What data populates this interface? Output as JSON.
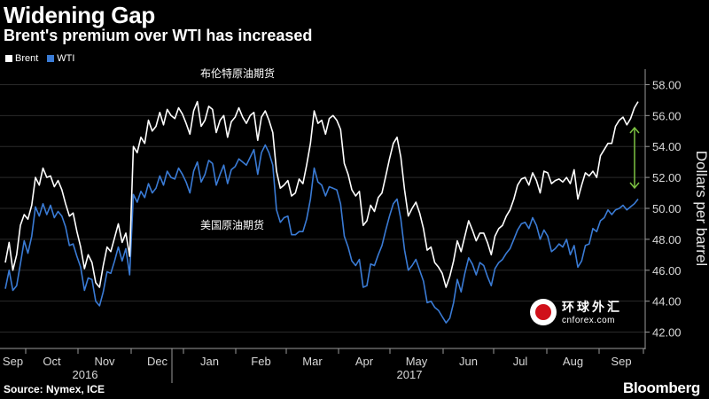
{
  "title": "Widening Gap",
  "subtitle": "Brent's premium over WTI has increased",
  "source": "Source: Nymex, ICE",
  "brand": "Bloomberg",
  "watermark": {
    "line1": "环球外汇",
    "line2": "cnforex.com"
  },
  "colors": {
    "Brent": "#ffffff",
    "WTI": "#3a7bd5",
    "arrow": "#7cc242",
    "grid": "#2a2a2a",
    "axis": "#9a9a9a"
  },
  "chart_data": {
    "type": "line",
    "title": "Widening Gap",
    "subtitle": "Brent's premium over WTI has increased",
    "ylabel": "Dollars per barrel",
    "ylim": [
      41,
      59
    ],
    "yticks": [
      "42.00",
      "44.00",
      "46.00",
      "48.00",
      "50.00",
      "52.00",
      "54.00",
      "56.00",
      "58.00"
    ],
    "x_month_labels": [
      "Sep",
      "Oct",
      "Nov",
      "Dec",
      "Jan",
      "Feb",
      "Mar",
      "Apr",
      "May",
      "Jun",
      "Jul",
      "Aug",
      "Sep"
    ],
    "x_year_labels": [
      "2016",
      "2017"
    ],
    "x_months_start": "2016-09",
    "annotations": [
      {
        "text": "布伦特原油期货",
        "series": "Brent"
      },
      {
        "text": "美国原油期货",
        "series": "WTI"
      }
    ],
    "series": [
      {
        "name": "Brent",
        "values": [
          46.5,
          47.8,
          46.0,
          47.0,
          48.9,
          49.6,
          49.3,
          50.2,
          52.0,
          51.5,
          52.6,
          52.0,
          52.1,
          51.4,
          51.8,
          51.2,
          50.3,
          49.5,
          49.7,
          48.5,
          47.5,
          46.1,
          47.0,
          46.5,
          45.2,
          44.9,
          46.3,
          47.5,
          47.2,
          48.1,
          49.0,
          47.8,
          48.4,
          46.9,
          54.0,
          53.6,
          54.6,
          54.2,
          55.7,
          55.0,
          55.3,
          56.2,
          55.4,
          56.4,
          56.0,
          55.8,
          56.5,
          56.1,
          55.5,
          54.8,
          56.3,
          56.9,
          55.3,
          55.7,
          56.6,
          56.4,
          54.9,
          55.7,
          56.0,
          54.6,
          55.6,
          55.9,
          56.5,
          55.9,
          55.5,
          56.0,
          56.2,
          54.4,
          55.9,
          56.3,
          55.7,
          54.9,
          52.4,
          51.3,
          51.5,
          51.8,
          50.8,
          51.0,
          51.9,
          51.6,
          52.8,
          54.2,
          56.3,
          55.5,
          55.7,
          54.8,
          55.8,
          56.0,
          55.7,
          55.1,
          52.9,
          52.2,
          51.2,
          50.8,
          51.1,
          48.9,
          49.2,
          50.2,
          49.8,
          50.7,
          51.0,
          52.1,
          53.2,
          54.2,
          54.6,
          53.3,
          51.2,
          49.5,
          50.0,
          50.4,
          49.7,
          48.7,
          47.3,
          47.5,
          46.5,
          46.2,
          45.8,
          44.9,
          45.6,
          46.6,
          47.9,
          47.2,
          48.2,
          49.2,
          48.6,
          47.9,
          48.4,
          48.4,
          47.8,
          47.0,
          48.2,
          48.7,
          48.9,
          49.5,
          49.9,
          50.6,
          51.5,
          51.9,
          52.0,
          51.5,
          52.3,
          51.8,
          51.0,
          52.4,
          52.3,
          51.6,
          51.8,
          51.9,
          51.7,
          52.0,
          51.6,
          52.5,
          50.6,
          51.5,
          52.3,
          52.1,
          52.4,
          52.0,
          53.4,
          53.8,
          54.2,
          54.2,
          55.3,
          55.7,
          55.9,
          55.4,
          55.8,
          56.5,
          56.9
        ]
      },
      {
        "name": "WTI",
        "values": [
          44.8,
          46.0,
          44.7,
          45.0,
          46.4,
          47.9,
          47.1,
          48.2,
          50.1,
          49.5,
          50.3,
          49.6,
          50.2,
          49.4,
          49.8,
          49.5,
          48.8,
          47.6,
          47.7,
          46.9,
          46.2,
          44.7,
          45.5,
          45.4,
          44.0,
          43.7,
          44.6,
          45.9,
          45.8,
          46.6,
          47.5,
          46.6,
          47.4,
          45.7,
          50.9,
          50.4,
          51.1,
          50.7,
          51.6,
          51.0,
          51.3,
          52.1,
          51.5,
          52.4,
          52.0,
          51.9,
          52.6,
          52.2,
          51.7,
          51.0,
          52.4,
          53.0,
          51.7,
          52.2,
          53.1,
          52.9,
          51.5,
          52.2,
          52.8,
          51.6,
          52.5,
          52.7,
          53.2,
          53.0,
          52.8,
          53.3,
          53.8,
          52.2,
          53.6,
          54.1,
          53.6,
          52.8,
          49.9,
          49.1,
          49.4,
          49.5,
          48.3,
          48.3,
          48.5,
          48.5,
          49.3,
          50.6,
          52.6,
          51.7,
          51.5,
          50.8,
          51.4,
          51.3,
          51.2,
          50.3,
          48.2,
          47.5,
          46.6,
          46.3,
          46.7,
          44.9,
          45.0,
          46.4,
          46.3,
          47.0,
          47.6,
          48.6,
          49.5,
          50.3,
          50.6,
          49.3,
          47.3,
          46.0,
          46.3,
          46.7,
          46.0,
          45.3,
          43.9,
          44.0,
          43.6,
          43.4,
          43.0,
          42.6,
          42.9,
          43.9,
          45.4,
          44.6,
          45.8,
          46.8,
          46.4,
          45.7,
          46.5,
          46.3,
          45.6,
          45.0,
          46.1,
          46.5,
          46.7,
          47.1,
          47.4,
          48.0,
          48.6,
          49.0,
          49.1,
          48.7,
          49.4,
          48.9,
          48.0,
          48.6,
          48.2,
          47.2,
          47.4,
          47.7,
          47.5,
          48.0,
          47.0,
          47.6,
          46.2,
          46.6,
          47.6,
          47.7,
          48.7,
          48.5,
          49.2,
          49.4,
          49.9,
          49.6,
          49.9,
          50.0,
          50.2,
          49.9,
          50.1,
          50.3,
          50.6
        ]
      }
    ]
  }
}
